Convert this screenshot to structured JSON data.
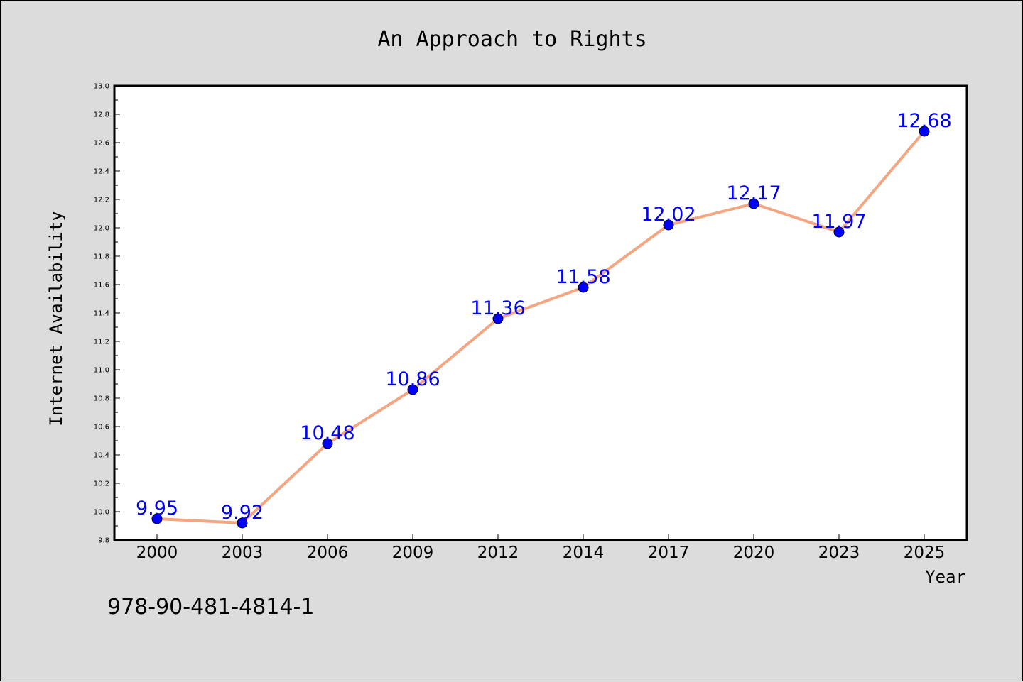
{
  "chart_data": {
    "type": "line",
    "title": "An Approach to Rights",
    "xlabel": "Year",
    "ylabel": "Internet Availability",
    "categories": [
      "2000",
      "2003",
      "2006",
      "2009",
      "2012",
      "2014",
      "2017",
      "2020",
      "2023",
      "2025"
    ],
    "series": [
      {
        "values": [
          9.95,
          9.92,
          10.48,
          10.86,
          11.36,
          11.58,
          12.02,
          12.17,
          11.97,
          12.68
        ],
        "data_labels": [
          "9.95",
          "9.92",
          "10.48",
          "10.86",
          "11.36",
          "11.58",
          "12.02",
          "12.17",
          "11.97",
          "12.68"
        ],
        "line_color": "#f4a582",
        "marker_color": "#0000ff"
      }
    ],
    "ylim": [
      9.8,
      13.0
    ],
    "yticks": [
      "9.8",
      "10.0",
      "10.2",
      "10.4",
      "10.6",
      "10.8",
      "11.0",
      "11.2",
      "11.4",
      "11.6",
      "11.8",
      "12.0",
      "12.2",
      "12.4",
      "12.6",
      "12.8",
      "13.0"
    ],
    "grid": false,
    "legend": "none",
    "background_color": "#dcdcdc",
    "plot_background_color": "#ffffff",
    "data_label_color": "#0000ff"
  },
  "footnote": "978-90-481-4814-1"
}
